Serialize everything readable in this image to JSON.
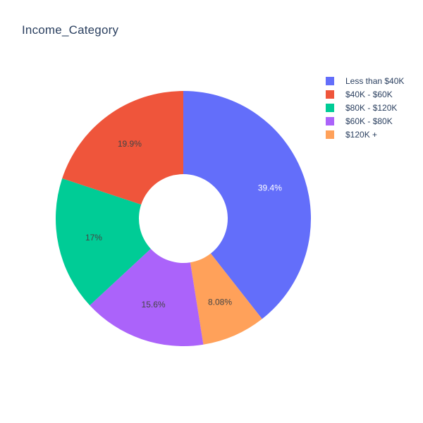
{
  "chart_data": {
    "type": "pie",
    "title": "Income_Category",
    "hole": true,
    "legend_position": "top-right",
    "slices": [
      {
        "label": "Less than $40K",
        "value": 39.4,
        "text": "39.4%",
        "color": "#636efa",
        "text_color": "#ffffff"
      },
      {
        "label": "$120K +",
        "value": 8.08,
        "text": "8.08%",
        "color": "#ffa15a",
        "text_color": "#444444"
      },
      {
        "label": "$60K - $80K",
        "value": 15.6,
        "text": "15.6%",
        "color": "#ab63fa",
        "text_color": "#444444"
      },
      {
        "label": "$80K - $120K",
        "value": 17,
        "text": "17%",
        "color": "#00cc96",
        "text_color": "#444444"
      },
      {
        "label": "$40K - $60K",
        "value": 19.9,
        "text": "19.9%",
        "color": "#ef553b",
        "text_color": "#444444"
      }
    ],
    "legend": [
      {
        "label": "Less than $40K",
        "color": "#636efa"
      },
      {
        "label": "$40K - $60K",
        "color": "#ef553b"
      },
      {
        "label": "$80K - $120K",
        "color": "#00cc96"
      },
      {
        "label": "$60K - $80K",
        "color": "#ab63fa"
      },
      {
        "label": "$120K +",
        "color": "#ffa15a"
      }
    ]
  }
}
